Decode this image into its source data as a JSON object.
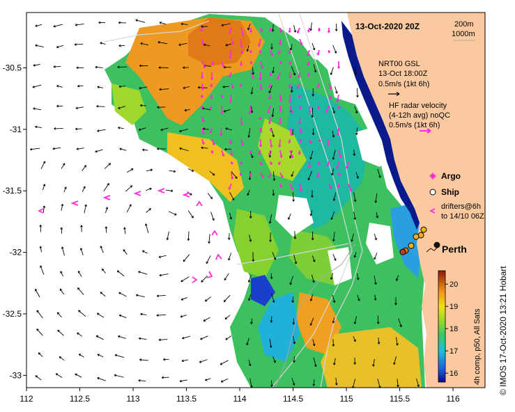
{
  "map": {
    "title": "13-Oct-2020 20Z",
    "isobath_labels": [
      "200m",
      "1000m"
    ],
    "x_ticks": [
      "112",
      "112.5",
      "113",
      "113.5",
      "114",
      "114.5",
      "115",
      "115.5",
      "116"
    ],
    "y_ticks": [
      "-30.5",
      "-31",
      "-31.5",
      "-32",
      "-32.5",
      "-33"
    ],
    "lon_range": [
      112,
      116.3
    ],
    "lat_range": [
      -33.1,
      -30.05
    ],
    "place_label": "Perth",
    "side_label": "© IMOS 17-Oct-2020 13:21 Hobart"
  },
  "legend": {
    "gsl_lines": [
      "NRT00 GSL",
      "13-Oct 18:00Z",
      "0.5m/s (1kt 6h)"
    ],
    "radar_lines": [
      "HF radar velocity",
      "(4-12h avg) noQC",
      "0.5m/s (1kt 6h)"
    ],
    "argo": "Argo",
    "ship": "Ship",
    "drifter_lines": [
      "drifters@6h",
      "to 14/10 06Z"
    ]
  },
  "colorbar": {
    "label": "4h comp, p50, All Sats",
    "ticks": [
      "16",
      "17",
      "18",
      "19",
      "20"
    ],
    "range": [
      15.6,
      20.6
    ]
  },
  "colors": {
    "land": "#fac9a0",
    "radar_arrows": "#ff2cd6",
    "shelf_dark": "#0a1a8c"
  }
}
